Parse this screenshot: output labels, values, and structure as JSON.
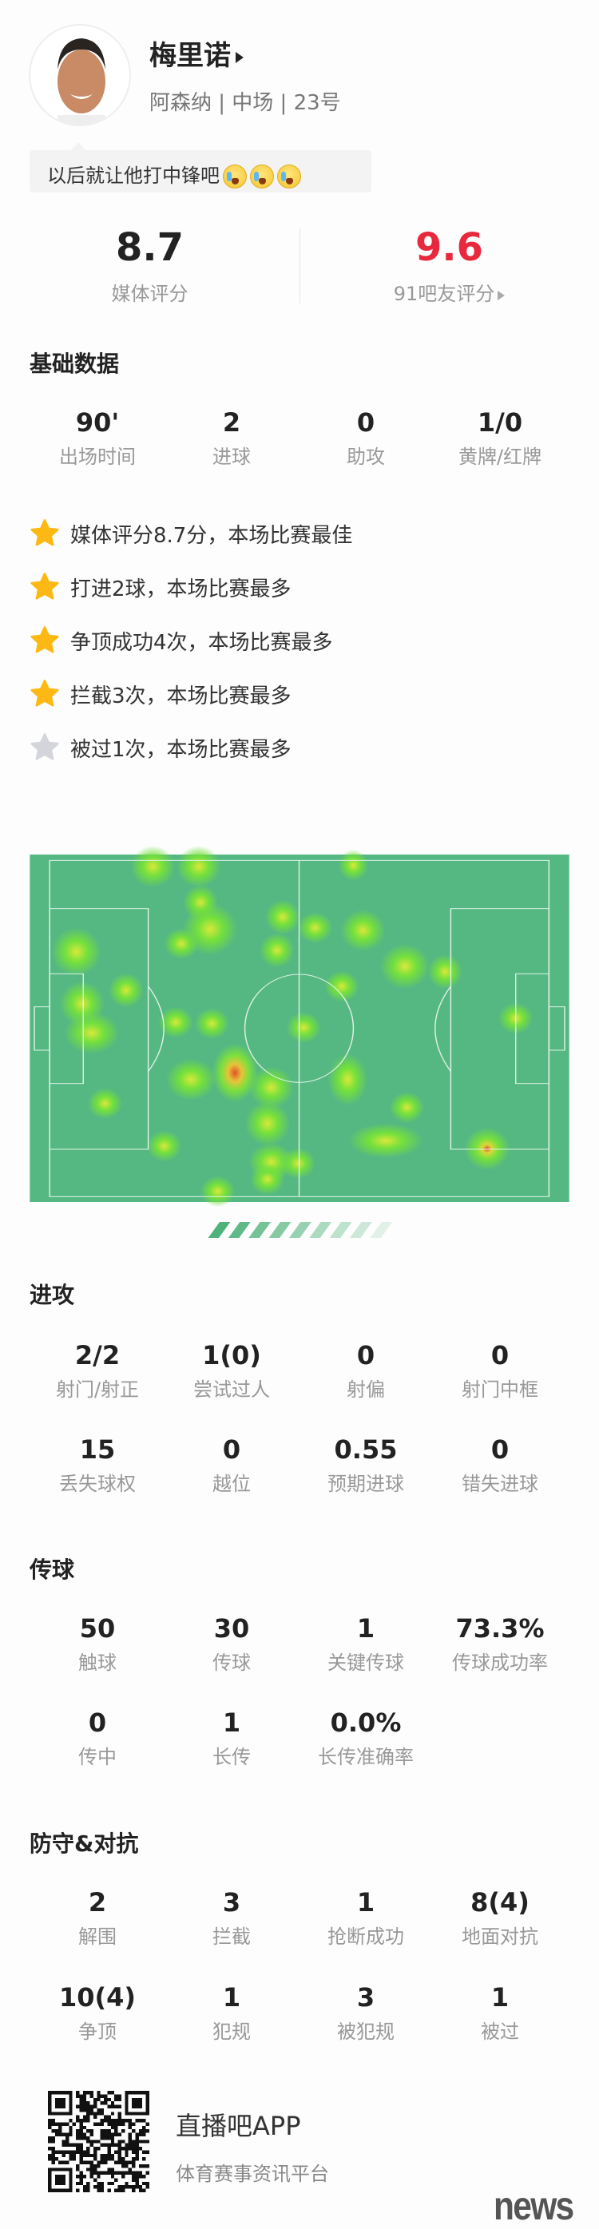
{
  "player": {
    "name": "梅里诺",
    "team": "阿森纳",
    "position": "中场",
    "number": "23号",
    "team_line": "阿森纳 | 中场 | 23号"
  },
  "comment": {
    "text": "以后就让他打中锋吧",
    "emojis": [
      "crying-face",
      "crying-face",
      "crying-face"
    ]
  },
  "ratings": {
    "media": {
      "value": "8.7",
      "label": "媒体评分"
    },
    "fans": {
      "value": "9.6",
      "label": "91吧友评分",
      "color": "#e8283c"
    }
  },
  "basic": {
    "title": "基础数据",
    "stats": [
      {
        "value": "90'",
        "label": "出场时间"
      },
      {
        "value": "2",
        "label": "进球"
      },
      {
        "value": "0",
        "label": "助攻"
      },
      {
        "value": "1/0",
        "label": "黄牌/红牌"
      }
    ]
  },
  "highlights": [
    {
      "text": "媒体评分8.7分，本场比赛最佳",
      "star": "gold"
    },
    {
      "text": "打进2球，本场比赛最多",
      "star": "gold"
    },
    {
      "text": "争顶成功4次，本场比赛最多",
      "star": "gold"
    },
    {
      "text": "拦截3次，本场比赛最多",
      "star": "gold"
    },
    {
      "text": "被过1次，本场比赛最多",
      "star": "grey"
    }
  ],
  "heatmap": {
    "pitch_color": "#55b882",
    "attack_direction": "left"
  },
  "attack": {
    "title": "进攻",
    "stats": [
      {
        "value": "2/2",
        "label": "射门/射正"
      },
      {
        "value": "1(0)",
        "label": "尝试过人"
      },
      {
        "value": "0",
        "label": "射偏"
      },
      {
        "value": "0",
        "label": "射门中框"
      },
      {
        "value": "15",
        "label": "丢失球权"
      },
      {
        "value": "0",
        "label": "越位"
      },
      {
        "value": "0.55",
        "label": "预期进球"
      },
      {
        "value": "0",
        "label": "错失进球"
      }
    ]
  },
  "passing": {
    "title": "传球",
    "stats": [
      {
        "value": "50",
        "label": "触球"
      },
      {
        "value": "30",
        "label": "传球"
      },
      {
        "value": "1",
        "label": "关键传球"
      },
      {
        "value": "73.3%",
        "label": "传球成功率"
      },
      {
        "value": "0",
        "label": "传中"
      },
      {
        "value": "1",
        "label": "长传"
      },
      {
        "value": "0.0%",
        "label": "长传准确率"
      }
    ]
  },
  "defense": {
    "title": "防守&对抗",
    "stats": [
      {
        "value": "2",
        "label": "解围"
      },
      {
        "value": "3",
        "label": "拦截"
      },
      {
        "value": "1",
        "label": "抢断成功"
      },
      {
        "value": "8(4)",
        "label": "地面对抗"
      },
      {
        "value": "10(4)",
        "label": "争顶"
      },
      {
        "value": "1",
        "label": "犯规"
      },
      {
        "value": "3",
        "label": "被犯规"
      },
      {
        "value": "1",
        "label": "被过"
      }
    ]
  },
  "footer": {
    "app_name": "直播吧APP",
    "app_desc": "体育赛事资讯平台",
    "watermark": "news"
  }
}
